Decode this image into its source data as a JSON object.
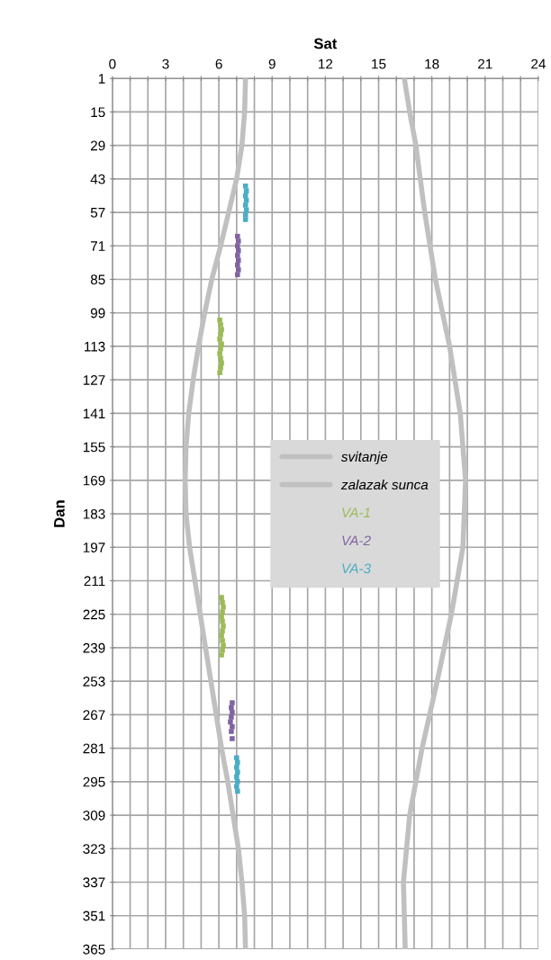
{
  "chart_data": {
    "type": "line",
    "xlabel": "Sat",
    "ylabel": "Dan",
    "xlim": [
      0,
      24
    ],
    "xticks": [
      0,
      {
        "value": 1,
        "label": null
      },
      {
        "value": 2,
        "label": null
      },
      3,
      {
        "value": 4,
        "label": null
      },
      {
        "value": 5,
        "label": null
      },
      6,
      {
        "value": 7,
        "label": null
      },
      {
        "value": 8,
        "label": null
      },
      9,
      {
        "value": 10,
        "label": null
      },
      {
        "value": 11,
        "label": null
      },
      12,
      {
        "value": 13,
        "label": null
      },
      {
        "value": 14,
        "label": null
      },
      15,
      {
        "value": 16,
        "label": null
      },
      {
        "value": 17,
        "label": null
      },
      18,
      {
        "value": 19,
        "label": null
      },
      {
        "value": 20,
        "label": null
      },
      21,
      {
        "value": 22,
        "label": null
      },
      {
        "value": 23,
        "label": null
      },
      24
    ],
    "ylim": [
      365,
      1
    ],
    "yticks": [
      1,
      15,
      29,
      43,
      57,
      71,
      85,
      99,
      113,
      127,
      141,
      155,
      169,
      183,
      197,
      211,
      225,
      239,
      253,
      267,
      281,
      295,
      309,
      323,
      337,
      351,
      365
    ],
    "grid": true,
    "legend": "center",
    "line_style": "solid",
    "series": [
      {
        "name": "svitanje",
        "marker": "none",
        "color": "#c0c0c0",
        "x": [
          7.5,
          7.45,
          7.3,
          7.0,
          6.55,
          6.1,
          5.6,
          5.2,
          4.85,
          4.55,
          4.3,
          4.15,
          4.1,
          4.15,
          4.35,
          4.65,
          4.95,
          5.25,
          5.55,
          5.85,
          6.15,
          6.5,
          6.8,
          7.1,
          7.3,
          7.45,
          7.5
        ],
        "values": [
          1,
          15,
          29,
          43,
          57,
          71,
          85,
          99,
          113,
          127,
          141,
          155,
          169,
          183,
          197,
          211,
          225,
          239,
          253,
          267,
          281,
          295,
          309,
          323,
          337,
          351,
          365
        ]
      },
      {
        "name": "zalazak sunca",
        "marker": "none",
        "color": "#c0c0c0",
        "x": [
          16.45,
          16.75,
          17.1,
          17.6,
          18.2,
          19.0,
          19.6,
          19.9,
          19.75,
          19.1,
          18.3,
          17.45,
          16.75,
          16.4,
          16.5
        ],
        "values": [
          1,
          15,
          29,
          57,
          85,
          113,
          141,
          169,
          197,
          225,
          253,
          281,
          309,
          337,
          365
        ]
      },
      {
        "name": "VA-1",
        "type": "scatter",
        "marker": "square",
        "color": "#9bbb59",
        "x": [
          6.05,
          6.1,
          6.15,
          6.1,
          6.05,
          6.15,
          6.1,
          6.05,
          6.1,
          6.15,
          6.1,
          6.05,
          6.15,
          6.2,
          6.25,
          6.2,
          6.15,
          6.2,
          6.25,
          6.2,
          6.15,
          6.2,
          6.25,
          6.2,
          6.15
        ],
        "values": [
          102,
          104,
          106,
          108,
          110,
          112,
          114,
          116,
          118,
          120,
          122,
          124,
          218,
          220,
          222,
          224,
          226,
          228,
          230,
          232,
          234,
          236,
          238,
          240,
          242
        ]
      },
      {
        "name": "VA-2",
        "type": "scatter",
        "marker": "square",
        "color": "#8064a2",
        "x": [
          7.05,
          7.1,
          7.05,
          7.1,
          7.05,
          7.1,
          7.05,
          7.1,
          7.05,
          6.75,
          6.7,
          6.75,
          6.7,
          6.65,
          6.75,
          6.7,
          6.75
        ],
        "values": [
          67,
          69,
          71,
          73,
          75,
          77,
          79,
          81,
          83,
          262,
          264,
          266,
          268,
          270,
          272,
          274,
          277
        ]
      },
      {
        "name": "VA-3",
        "type": "scatter",
        "marker": "square",
        "color": "#4bacc6",
        "x": [
          7.5,
          7.55,
          7.5,
          7.55,
          7.5,
          7.55,
          7.5,
          7.5,
          7.0,
          7.05,
          7.0,
          7.05,
          7.0,
          7.05,
          7.0,
          7.05
        ],
        "values": [
          46,
          48,
          50,
          52,
          54,
          56,
          58,
          60,
          285,
          287,
          289,
          291,
          293,
          295,
          297,
          299
        ]
      }
    ]
  }
}
